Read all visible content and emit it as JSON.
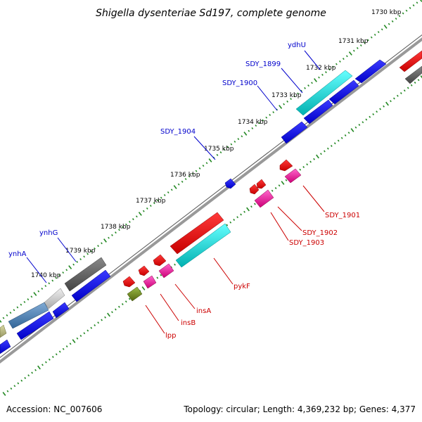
{
  "title": "Shigella dysenteriae Sd197, complete genome",
  "footer": {
    "accession": "Accession: NC_007606",
    "summary": "Topology: circular; Length: 4,369,232 bp; Genes: 4,377"
  },
  "kbp_labels": [
    "1730 kbp",
    "1731 kbp",
    "1732 kbp",
    "1733 kbp",
    "1734 kbp",
    "1735 kbp",
    "1736 kbp",
    "1737 kbp",
    "1738 kbp",
    "1739 kbp",
    "1740 kbp"
  ],
  "upper_genes": [
    {
      "name": "ydhU",
      "color": "#0000cc"
    },
    {
      "name": "SDY_1899",
      "color": "#0000cc"
    },
    {
      "name": "SDY_1900",
      "color": "#0000cc"
    },
    {
      "name": "SDY_1904",
      "color": "#0000cc"
    },
    {
      "name": "ynhG",
      "color": "#0000cc"
    },
    {
      "name": "ynhA",
      "color": "#0000cc"
    }
  ],
  "lower_genes": [
    {
      "name": "SDY_1901",
      "color": "#cc0000"
    },
    {
      "name": "SDY_1902",
      "color": "#cc0000"
    },
    {
      "name": "SDY_1903",
      "color": "#cc0000"
    },
    {
      "name": "pykF",
      "color": "#cc0000"
    },
    {
      "name": "insA",
      "color": "#cc0000"
    },
    {
      "name": "insB",
      "color": "#cc0000"
    },
    {
      "name": "lpp",
      "color": "#cc0000"
    }
  ],
  "feature_colors": {
    "forward_cds": "#0000ee",
    "reverse_cds": "#ee0000",
    "rna": "#00cccc",
    "pseudo": "#666666",
    "pink": "#ee2299",
    "olive": "#668822",
    "steel": "#4477aa",
    "backbone": "#888888"
  }
}
